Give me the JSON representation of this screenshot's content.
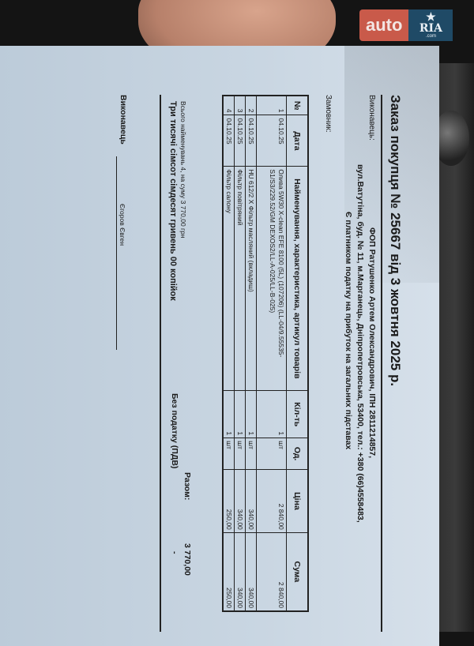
{
  "watermark": {
    "brand_left": "auto",
    "brand_right": "RIA",
    ".com": ".com"
  },
  "document": {
    "title": "Заказ покупця № 25667 від 3 жовтня 2025 р.",
    "seller_label": "Виконавець:",
    "seller_lines": [
      "ФОП Ратушенко Артем Олександрович,  ІПН 2811214857,",
      "вул.Ватутіна, буд. № 11, м.Марганець, Дніпропетровська, 53400,  тел.: +380 (66)4558483,",
      "Є платником податку на прибуток на загальних підставах"
    ],
    "buyer_label": "Замовник:",
    "table": {
      "headers": [
        "№",
        "Дата",
        "Найменування, характеристика, артикул товарів",
        "Кіл-ть",
        "Од.",
        "Ціна",
        "Сума"
      ],
      "rows": [
        {
          "n": "1",
          "date": "04.10.25",
          "name": "Олива 5W30 X-clean EFE 8100 (5L) (107206) (LL-04/9.55535-S1/S3/229.52/GM DEXOS2/LL-A-025/LL-B-025)",
          "qty": "1",
          "unit": "шт",
          "price": "2 840,00",
          "sum": "2 840,00"
        },
        {
          "n": "2",
          "date": "04.10.25",
          "name": "HU 612/2 X Фільтр масляний (вкладиш)",
          "qty": "1",
          "unit": "шт",
          "price": "340,00",
          "sum": "340,00"
        },
        {
          "n": "3",
          "date": "04.10.25",
          "name": "Фільтр повітряний",
          "qty": "1",
          "unit": "шт",
          "price": "340,00",
          "sum": "340,00"
        },
        {
          "n": "4",
          "date": "04.10.25",
          "name": "Фільтр салону",
          "qty": "1",
          "unit": "шт",
          "price": "250,00",
          "sum": "250,00"
        }
      ]
    },
    "total_label": "Разом:",
    "total_value": "3 770,00",
    "tax_label": "Без податку (ПДВ)",
    "tax_value": "-",
    "summary": "Всього найменувань 4, на суму 3 770,00 грн",
    "summary_words": "Три тисячі сімсот сімдесят гривень 00 копійок",
    "signer_label": "Виконавець",
    "signer_name": "Єгоров Євген"
  }
}
